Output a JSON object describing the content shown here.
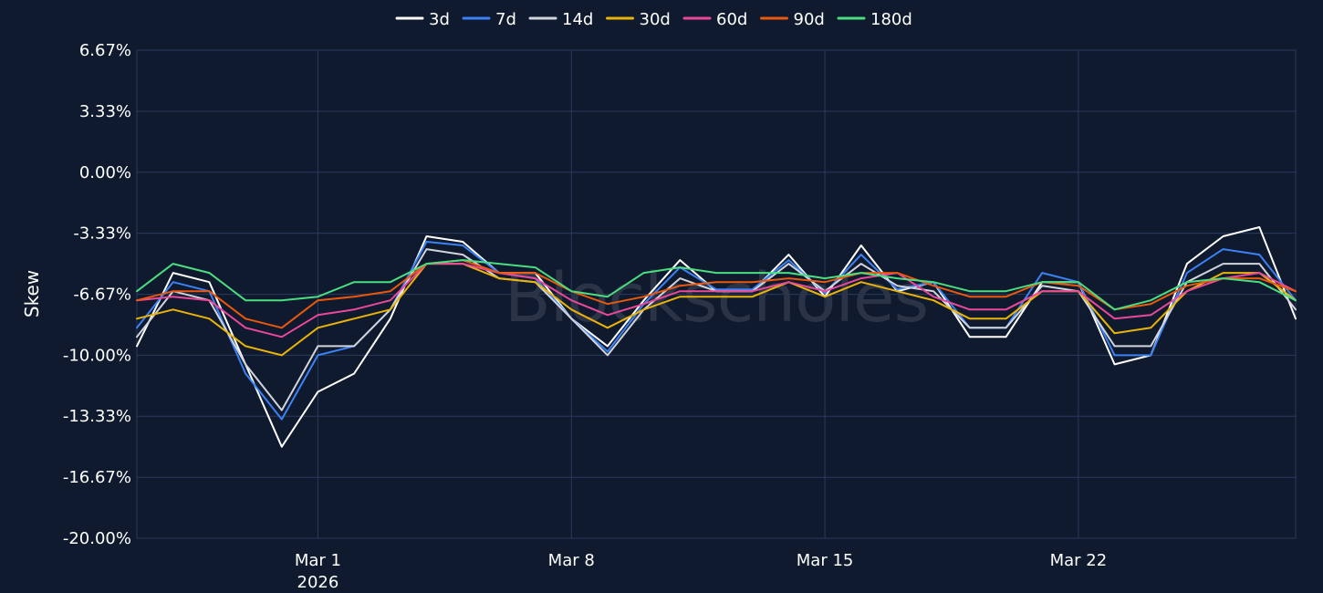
{
  "chart_data": {
    "type": "line",
    "title": "",
    "xlabel": "",
    "ylabel": "Skew",
    "watermark": "Blockscholes",
    "ylim": [
      -20.0,
      6.67
    ],
    "yticks": [
      "6.67%",
      "3.33%",
      "0.00%",
      "-3.33%",
      "-6.67%",
      "-10.00%",
      "-13.33%",
      "-16.67%",
      "-20.00%"
    ],
    "ytick_values": [
      6.67,
      3.33,
      0.0,
      -3.33,
      -6.67,
      -10.0,
      -13.33,
      -16.67,
      -20.0
    ],
    "xlim": [
      "2026-02-24",
      "2026-03-28"
    ],
    "xticks": [
      {
        "date": "2026-03-01",
        "label": "Mar 1",
        "sublabel": "2026"
      },
      {
        "date": "2026-03-08",
        "label": "Mar 8",
        "sublabel": ""
      },
      {
        "date": "2026-03-15",
        "label": "Mar 15",
        "sublabel": ""
      },
      {
        "date": "2026-03-22",
        "label": "Mar 22",
        "sublabel": ""
      }
    ],
    "grid": true,
    "legend_position": "top-center",
    "x": [
      "2026-02-24",
      "2026-02-25",
      "2026-02-26",
      "2026-02-27",
      "2026-02-28",
      "2026-03-01",
      "2026-03-02",
      "2026-03-03",
      "2026-03-04",
      "2026-03-05",
      "2026-03-06",
      "2026-03-07",
      "2026-03-08",
      "2026-03-09",
      "2026-03-10",
      "2026-03-11",
      "2026-03-12",
      "2026-03-13",
      "2026-03-14",
      "2026-03-15",
      "2026-03-16",
      "2026-03-17",
      "2026-03-18",
      "2026-03-19",
      "2026-03-20",
      "2026-03-21",
      "2026-03-22",
      "2026-03-23",
      "2026-03-24",
      "2026-03-25",
      "2026-03-26",
      "2026-03-27",
      "2026-03-28"
    ],
    "series": [
      {
        "name": "3d",
        "color": "#ffffff",
        "values": [
          -9.5,
          -5.5,
          -6.0,
          -10.5,
          -15.0,
          -12.0,
          -11.0,
          -8.0,
          -3.5,
          -3.8,
          -5.5,
          -5.5,
          -8.0,
          -9.5,
          -7.0,
          -4.8,
          -6.5,
          -6.5,
          -4.5,
          -6.8,
          -4.0,
          -6.5,
          -6.0,
          -9.0,
          -9.0,
          -6.0,
          -6.0,
          -10.5,
          -10.0,
          -5.0,
          -3.5,
          -3.0,
          -8.0
        ]
      },
      {
        "name": "7d",
        "color": "#3b82f6",
        "values": [
          -8.5,
          -6.0,
          -6.5,
          -11.0,
          -13.5,
          -10.0,
          -9.5,
          -7.5,
          -3.8,
          -4.0,
          -5.5,
          -5.8,
          -8.0,
          -9.8,
          -7.2,
          -5.2,
          -6.4,
          -6.4,
          -4.8,
          -6.6,
          -4.5,
          -6.4,
          -6.0,
          -8.5,
          -8.5,
          -5.5,
          -6.0,
          -10.0,
          -10.0,
          -5.5,
          -4.2,
          -4.5,
          -7.0
        ]
      },
      {
        "name": "14d",
        "color": "#d1d5db",
        "values": [
          -9.0,
          -6.5,
          -7.0,
          -10.5,
          -13.0,
          -9.5,
          -9.5,
          -7.5,
          -4.2,
          -4.5,
          -5.8,
          -6.0,
          -8.0,
          -10.0,
          -7.5,
          -5.8,
          -6.5,
          -6.5,
          -5.0,
          -6.5,
          -5.0,
          -6.2,
          -6.5,
          -8.5,
          -8.5,
          -6.2,
          -6.5,
          -9.5,
          -9.5,
          -6.0,
          -5.0,
          -5.0,
          -7.5
        ]
      },
      {
        "name": "30d",
        "color": "#eab308",
        "values": [
          -8.0,
          -7.5,
          -8.0,
          -9.5,
          -10.0,
          -8.5,
          -8.0,
          -7.5,
          -5.0,
          -5.0,
          -5.8,
          -6.0,
          -7.5,
          -8.5,
          -7.5,
          -6.8,
          -6.8,
          -6.8,
          -6.0,
          -6.8,
          -6.0,
          -6.5,
          -7.0,
          -8.0,
          -8.0,
          -6.5,
          -6.5,
          -8.8,
          -8.5,
          -6.5,
          -5.5,
          -5.5,
          -7.0
        ]
      },
      {
        "name": "60d",
        "color": "#ec4899",
        "values": [
          -7.0,
          -6.8,
          -7.0,
          -8.5,
          -9.0,
          -7.8,
          -7.5,
          -7.0,
          -5.0,
          -5.0,
          -5.5,
          -5.8,
          -7.0,
          -7.8,
          -7.2,
          -6.5,
          -6.5,
          -6.5,
          -6.0,
          -6.5,
          -5.8,
          -5.5,
          -6.8,
          -7.5,
          -7.5,
          -6.5,
          -6.5,
          -8.0,
          -7.8,
          -6.5,
          -5.8,
          -5.5,
          -6.5
        ]
      },
      {
        "name": "90d",
        "color": "#ea580c",
        "values": [
          -7.0,
          -6.5,
          -6.5,
          -8.0,
          -8.5,
          -7.0,
          -6.8,
          -6.5,
          -5.0,
          -4.8,
          -5.5,
          -5.5,
          -6.5,
          -7.2,
          -6.8,
          -6.2,
          -6.0,
          -6.0,
          -5.8,
          -6.0,
          -5.5,
          -5.5,
          -6.2,
          -6.8,
          -6.8,
          -6.0,
          -6.2,
          -7.5,
          -7.2,
          -6.2,
          -5.8,
          -5.8,
          -6.5
        ]
      },
      {
        "name": "180d",
        "color": "#4ade80",
        "values": [
          -6.5,
          -5.0,
          -5.5,
          -7.0,
          -7.0,
          -6.8,
          -6.0,
          -6.0,
          -5.0,
          -4.8,
          -5.0,
          -5.2,
          -6.5,
          -6.8,
          -5.5,
          -5.2,
          -5.5,
          -5.5,
          -5.5,
          -5.8,
          -5.5,
          -5.8,
          -6.0,
          -6.5,
          -6.5,
          -6.0,
          -6.0,
          -7.5,
          -7.0,
          -6.0,
          -5.8,
          -6.0,
          -7.0
        ]
      }
    ]
  }
}
